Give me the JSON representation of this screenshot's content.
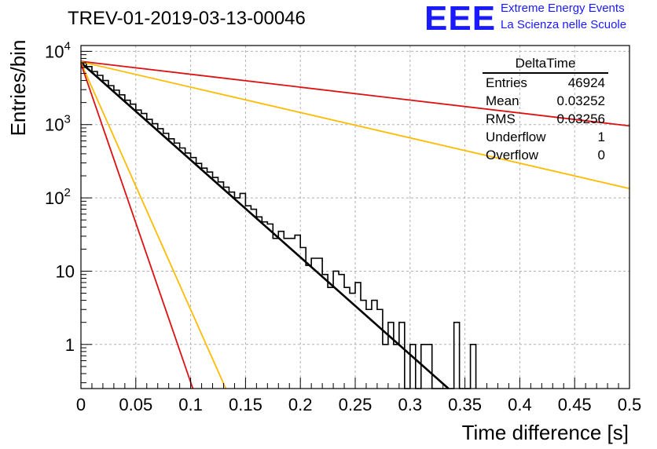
{
  "header": {
    "run_title": "TREV-01-2019-03-13-00046",
    "logo_mark": "EEE",
    "logo_line1": "Extreme Energy Events",
    "logo_line2": "La Scienza nelle Scuole",
    "logo_color": "#1a1aff"
  },
  "stats": {
    "title": "DeltaTime",
    "rows": [
      {
        "label": "Entries",
        "value": "46924"
      },
      {
        "label": "Mean",
        "value": "0.03252"
      },
      {
        "label": "RMS",
        "value": "0.03256"
      },
      {
        "label": "Underflow",
        "value": "1"
      },
      {
        "label": "Overflow",
        "value": "0"
      }
    ]
  },
  "chart_data": {
    "type": "line",
    "title": "TREV-01-2019-03-13-00046",
    "xlabel": "Time difference [s]",
    "ylabel": "Entries/bin",
    "xlim": [
      0,
      0.5
    ],
    "ylim": [
      0.25,
      12000
    ],
    "y_scale": "log",
    "grid": true,
    "x_ticks": [
      "0",
      "0.05",
      "0.1",
      "0.15",
      "0.2",
      "0.25",
      "0.3",
      "0.35",
      "0.4",
      "0.45",
      "0.5"
    ],
    "y_ticks": [
      {
        "value": 1,
        "base": "1",
        "exp": ""
      },
      {
        "value": 10,
        "base": "10",
        "exp": ""
      },
      {
        "value": 100,
        "base": "10",
        "exp": "2"
      },
      {
        "value": 1000,
        "base": "10",
        "exp": "3"
      },
      {
        "value": 10000,
        "base": "10",
        "exp": "4"
      }
    ],
    "histogram": {
      "name": "DeltaTime",
      "color": "#000000",
      "bin_width": 0.005,
      "bins": [
        {
          "x": 0.0,
          "y": 6900
        },
        {
          "x": 0.005,
          "y": 6200
        },
        {
          "x": 0.01,
          "y": 5300
        },
        {
          "x": 0.015,
          "y": 4700
        },
        {
          "x": 0.02,
          "y": 4000
        },
        {
          "x": 0.025,
          "y": 3400
        },
        {
          "x": 0.03,
          "y": 2950
        },
        {
          "x": 0.035,
          "y": 2550
        },
        {
          "x": 0.04,
          "y": 2150
        },
        {
          "x": 0.045,
          "y": 1900
        },
        {
          "x": 0.05,
          "y": 1580
        },
        {
          "x": 0.055,
          "y": 1420
        },
        {
          "x": 0.06,
          "y": 1180
        },
        {
          "x": 0.065,
          "y": 1030
        },
        {
          "x": 0.07,
          "y": 880
        },
        {
          "x": 0.075,
          "y": 760
        },
        {
          "x": 0.08,
          "y": 640
        },
        {
          "x": 0.085,
          "y": 560
        },
        {
          "x": 0.09,
          "y": 480
        },
        {
          "x": 0.095,
          "y": 410
        },
        {
          "x": 0.1,
          "y": 355
        },
        {
          "x": 0.105,
          "y": 295
        },
        {
          "x": 0.11,
          "y": 255
        },
        {
          "x": 0.115,
          "y": 225
        },
        {
          "x": 0.12,
          "y": 190
        },
        {
          "x": 0.125,
          "y": 165
        },
        {
          "x": 0.13,
          "y": 140
        },
        {
          "x": 0.135,
          "y": 120
        },
        {
          "x": 0.14,
          "y": 100
        },
        {
          "x": 0.145,
          "y": 115
        },
        {
          "x": 0.15,
          "y": 78
        },
        {
          "x": 0.155,
          "y": 70
        },
        {
          "x": 0.16,
          "y": 55
        },
        {
          "x": 0.165,
          "y": 47
        },
        {
          "x": 0.17,
          "y": 44
        },
        {
          "x": 0.175,
          "y": 28
        },
        {
          "x": 0.18,
          "y": 35
        },
        {
          "x": 0.185,
          "y": 28
        },
        {
          "x": 0.19,
          "y": 28
        },
        {
          "x": 0.195,
          "y": 31
        },
        {
          "x": 0.2,
          "y": 21
        },
        {
          "x": 0.205,
          "y": 12
        },
        {
          "x": 0.21,
          "y": 15
        },
        {
          "x": 0.215,
          "y": 15
        },
        {
          "x": 0.22,
          "y": 9
        },
        {
          "x": 0.225,
          "y": 6
        },
        {
          "x": 0.23,
          "y": 10
        },
        {
          "x": 0.235,
          "y": 9
        },
        {
          "x": 0.24,
          "y": 6
        },
        {
          "x": 0.245,
          "y": 5
        },
        {
          "x": 0.25,
          "y": 7
        },
        {
          "x": 0.255,
          "y": 4
        },
        {
          "x": 0.26,
          "y": 3
        },
        {
          "x": 0.265,
          "y": 4
        },
        {
          "x": 0.27,
          "y": 3
        },
        {
          "x": 0.275,
          "y": 1
        },
        {
          "x": 0.28,
          "y": 2
        },
        {
          "x": 0.285,
          "y": 1
        },
        {
          "x": 0.29,
          "y": 2
        },
        {
          "x": 0.295,
          "y": 0
        },
        {
          "x": 0.3,
          "y": 1
        },
        {
          "x": 0.305,
          "y": 0
        },
        {
          "x": 0.31,
          "y": 1
        },
        {
          "x": 0.315,
          "y": 1
        },
        {
          "x": 0.32,
          "y": 0
        },
        {
          "x": 0.325,
          "y": 0
        },
        {
          "x": 0.33,
          "y": 0
        },
        {
          "x": 0.335,
          "y": 0
        },
        {
          "x": 0.34,
          "y": 2
        },
        {
          "x": 0.345,
          "y": 0
        },
        {
          "x": 0.35,
          "y": 0
        },
        {
          "x": 0.355,
          "y": 1
        }
      ]
    },
    "series": [
      {
        "color": "#000000",
        "points": [
          [
            0,
            7000
          ],
          [
            0.335,
            0.25
          ]
        ]
      },
      {
        "color": "#dd1111",
        "points": [
          [
            0,
            7300
          ],
          [
            0.5,
            960
          ]
        ]
      },
      {
        "color": "#ffbb00",
        "points": [
          [
            0,
            7200
          ],
          [
            0.5,
            134
          ]
        ]
      },
      {
        "color": "#ffbb00",
        "points": [
          [
            0,
            7000
          ],
          [
            0.132,
            0.25
          ]
        ]
      },
      {
        "color": "#dd1111",
        "points": [
          [
            0,
            6800
          ],
          [
            0.102,
            0.25
          ]
        ]
      }
    ]
  }
}
